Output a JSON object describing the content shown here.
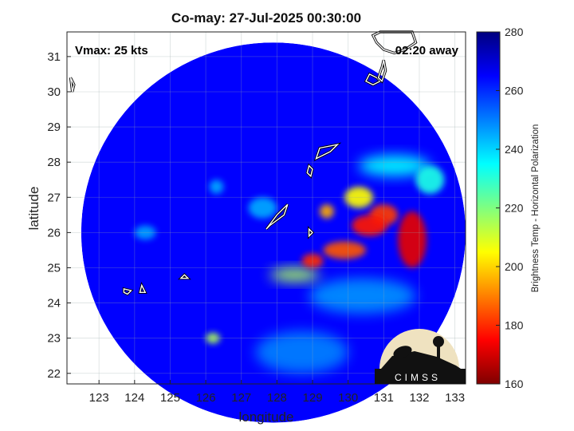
{
  "chart_data": {
    "type": "heatmap",
    "title": "Co-may: 27-Jul-2025 00:30:00",
    "xlabel": "longitude",
    "ylabel": "latitude",
    "xlim": [
      122.1,
      133.3
    ],
    "ylim": [
      21.7,
      31.7
    ],
    "xticks": [
      123,
      124,
      125,
      126,
      127,
      128,
      129,
      130,
      131,
      132,
      133
    ],
    "yticks": [
      22,
      23,
      24,
      25,
      26,
      27,
      28,
      29,
      30,
      31
    ],
    "grid": true,
    "annotations": {
      "left": "Vmax: 25 kts",
      "right": "02:20 away"
    },
    "colorbar": {
      "label": "Brightness Temp - Horizontal Polarization",
      "range": [
        160,
        280
      ],
      "ticks": [
        160,
        180,
        200,
        220,
        240,
        260,
        280
      ],
      "colormap": "jet"
    },
    "swath": {
      "center": [
        127.9,
        26.0
      ],
      "radius_deg": 5.4,
      "background_value": 265
    },
    "features": [
      {
        "lon": 131.8,
        "lat": 25.8,
        "value": 172,
        "rx": 0.4,
        "ry": 0.8
      },
      {
        "lon": 130.6,
        "lat": 26.2,
        "value": 178,
        "rx": 0.5,
        "ry": 0.3
      },
      {
        "lon": 131.0,
        "lat": 26.5,
        "value": 182,
        "rx": 0.4,
        "ry": 0.3
      },
      {
        "lon": 129.9,
        "lat": 25.5,
        "value": 185,
        "rx": 0.6,
        "ry": 0.25
      },
      {
        "lon": 129.0,
        "lat": 25.2,
        "value": 180,
        "rx": 0.3,
        "ry": 0.2
      },
      {
        "lon": 130.3,
        "lat": 27.0,
        "value": 205,
        "rx": 0.4,
        "ry": 0.3
      },
      {
        "lon": 129.4,
        "lat": 26.6,
        "value": 195,
        "rx": 0.2,
        "ry": 0.2
      },
      {
        "lon": 128.5,
        "lat": 24.8,
        "value": 215,
        "rx": 0.7,
        "ry": 0.2
      },
      {
        "lon": 126.2,
        "lat": 23.0,
        "value": 215,
        "rx": 0.2,
        "ry": 0.15
      },
      {
        "lon": 131.3,
        "lat": 27.9,
        "value": 235,
        "rx": 1.0,
        "ry": 0.3
      },
      {
        "lon": 132.3,
        "lat": 27.5,
        "value": 232,
        "rx": 0.4,
        "ry": 0.4
      },
      {
        "lon": 126.3,
        "lat": 27.3,
        "value": 245,
        "rx": 0.2,
        "ry": 0.2
      },
      {
        "lon": 130.4,
        "lat": 24.2,
        "value": 248,
        "rx": 1.5,
        "ry": 0.5
      },
      {
        "lon": 127.6,
        "lat": 26.7,
        "value": 245,
        "rx": 0.4,
        "ry": 0.3
      },
      {
        "lon": 124.3,
        "lat": 26.0,
        "value": 246,
        "rx": 0.3,
        "ry": 0.2
      },
      {
        "lon": 128.7,
        "lat": 22.6,
        "value": 250,
        "rx": 1.3,
        "ry": 0.6
      }
    ],
    "coastlines": [
      [
        [
          131.8,
          31.7
        ],
        [
          131.9,
          31.4
        ],
        [
          131.6,
          31.2
        ],
        [
          131.3,
          31.1
        ],
        [
          131.0,
          31.2
        ],
        [
          130.8,
          31.4
        ],
        [
          130.7,
          31.6
        ],
        [
          130.9,
          31.7
        ]
      ],
      [
        [
          130.6,
          30.5
        ],
        [
          130.8,
          30.4
        ],
        [
          130.9,
          30.3
        ],
        [
          130.7,
          30.2
        ],
        [
          130.5,
          30.3
        ]
      ],
      [
        [
          131.0,
          30.9
        ],
        [
          131.05,
          30.6
        ],
        [
          130.95,
          30.3
        ],
        [
          130.85,
          30.4
        ],
        [
          130.95,
          30.7
        ]
      ],
      [
        [
          129.2,
          28.4
        ],
        [
          129.7,
          28.5
        ],
        [
          129.5,
          28.3
        ],
        [
          129.1,
          28.1
        ]
      ],
      [
        [
          128.9,
          27.9
        ],
        [
          129.0,
          27.8
        ],
        [
          128.95,
          27.6
        ],
        [
          128.85,
          27.7
        ]
      ],
      [
        [
          127.7,
          26.1
        ],
        [
          128.0,
          26.5
        ],
        [
          128.3,
          26.8
        ],
        [
          128.2,
          26.5
        ],
        [
          127.8,
          26.2
        ]
      ],
      [
        [
          128.9,
          26.1
        ],
        [
          129.0,
          26.0
        ],
        [
          128.9,
          25.9
        ]
      ],
      [
        [
          125.4,
          24.8
        ],
        [
          125.5,
          24.7
        ],
        [
          125.3,
          24.7
        ]
      ],
      [
        [
          124.2,
          24.5
        ],
        [
          124.3,
          24.3
        ],
        [
          124.15,
          24.3
        ]
      ],
      [
        [
          123.7,
          24.4
        ],
        [
          123.9,
          24.35
        ],
        [
          123.8,
          24.25
        ],
        [
          123.7,
          24.3
        ]
      ],
      [
        [
          122.2,
          30.4
        ],
        [
          122.3,
          30.2
        ],
        [
          122.25,
          30.0
        ]
      ]
    ]
  },
  "logo": {
    "text": "CIMSS"
  }
}
